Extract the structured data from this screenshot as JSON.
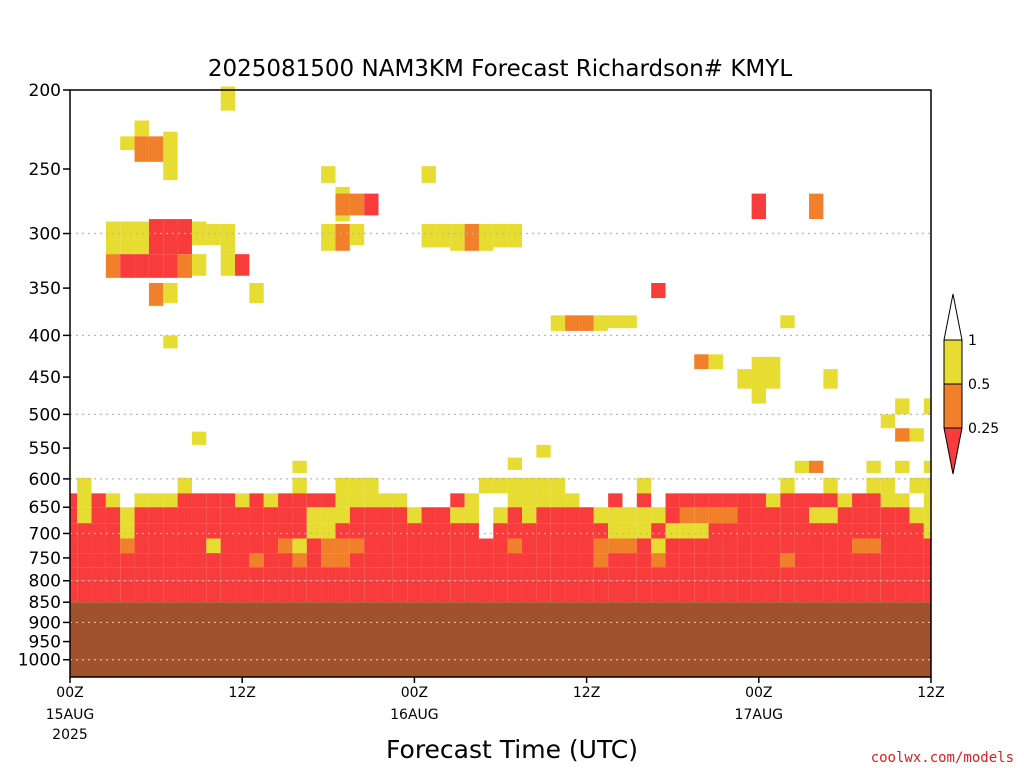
{
  "chart_data": {
    "type": "heatmap",
    "title": "2025081500 NAM3KM Forecast Richardson# KMYL",
    "xlabel": "Forecast Time (UTC)",
    "ylabel": "",
    "x_unit": "forecast hour",
    "xlim": [
      0,
      60
    ],
    "ylim": [
      1050,
      200
    ],
    "yscale": "log",
    "y_ticks": [
      200,
      250,
      300,
      350,
      400,
      450,
      500,
      550,
      600,
      650,
      700,
      750,
      800,
      850,
      900,
      950,
      1000
    ],
    "y_tick_labels": [
      "200",
      "250",
      "300",
      "350",
      "400",
      "450",
      "500",
      "550",
      "600",
      "650",
      "700",
      "750",
      "800",
      "850",
      "900",
      "950",
      "1000"
    ],
    "y_gridlines": [
      300,
      400,
      500,
      600,
      700,
      800,
      900,
      1000
    ],
    "x_ticks": [
      {
        "hour": 0,
        "label": "00Z",
        "date": "15AUG",
        "year": "2025"
      },
      {
        "hour": 12,
        "label": "12Z",
        "date": "",
        "year": ""
      },
      {
        "hour": 24,
        "label": "00Z",
        "date": "16AUG",
        "year": ""
      },
      {
        "hour": 36,
        "label": "12Z",
        "date": "",
        "year": ""
      },
      {
        "hour": 48,
        "label": "00Z",
        "date": "17AUG",
        "year": ""
      },
      {
        "hour": 60,
        "label": "12Z",
        "date": "",
        "year": ""
      }
    ],
    "colorbar": {
      "levels": [
        "0.25",
        "0.5",
        "1"
      ],
      "classes": [
        {
          "name": "lt025",
          "range": "< 0.25",
          "color": "#f83c3c"
        },
        {
          "name": "025_05",
          "range": "0.25 - 0.5",
          "color": "#f0802a"
        },
        {
          "name": "05_1",
          "range": "0.5 - 1",
          "color": "#e6dc32"
        },
        {
          "name": "gt1",
          "range": "> 1",
          "color": "#ffffff"
        }
      ]
    },
    "below_ground": {
      "from_pressure": 850,
      "color": "#a0522d"
    },
    "cells": [
      {
        "hour": 11,
        "p_top": 198,
        "p_bot": 212,
        "class": "05_1"
      },
      {
        "hour": 4,
        "p_top": 228,
        "p_bot": 237,
        "class": "05_1"
      },
      {
        "hour": 5,
        "p_top": 218,
        "p_bot": 228,
        "class": "05_1"
      },
      {
        "hour": 5,
        "p_top": 228,
        "p_bot": 245,
        "class": "025_05"
      },
      {
        "hour": 6,
        "p_top": 228,
        "p_bot": 245,
        "class": "025_05"
      },
      {
        "hour": 7,
        "p_top": 225,
        "p_bot": 258,
        "class": "05_1"
      },
      {
        "hour": 18,
        "p_top": 248,
        "p_bot": 260,
        "class": "05_1"
      },
      {
        "hour": 25,
        "p_top": 248,
        "p_bot": 260,
        "class": "05_1"
      },
      {
        "hour": 19,
        "p_top": 263,
        "p_bot": 290,
        "class": "05_1"
      },
      {
        "hour": 19,
        "p_top": 268,
        "p_bot": 285,
        "class": "025_05"
      },
      {
        "hour": 20,
        "p_top": 268,
        "p_bot": 285,
        "class": "025_05"
      },
      {
        "hour": 21,
        "p_top": 268,
        "p_bot": 285,
        "class": "lt025"
      },
      {
        "hour": 48,
        "p_top": 268,
        "p_bot": 288,
        "class": "lt025"
      },
      {
        "hour": 52,
        "p_top": 268,
        "p_bot": 288,
        "class": "025_05"
      },
      {
        "hour": 3,
        "p_top": 290,
        "p_bot": 318,
        "class": "05_1"
      },
      {
        "hour": 4,
        "p_top": 290,
        "p_bot": 318,
        "class": "05_1"
      },
      {
        "hour": 5,
        "p_top": 290,
        "p_bot": 318,
        "class": "05_1"
      },
      {
        "hour": 6,
        "p_top": 288,
        "p_bot": 318,
        "class": "lt025"
      },
      {
        "hour": 7,
        "p_top": 288,
        "p_bot": 318,
        "class": "lt025"
      },
      {
        "hour": 8,
        "p_top": 288,
        "p_bot": 318,
        "class": "lt025"
      },
      {
        "hour": 9,
        "p_top": 290,
        "p_bot": 310,
        "class": "05_1"
      },
      {
        "hour": 10,
        "p_top": 292,
        "p_bot": 310,
        "class": "05_1"
      },
      {
        "hour": 11,
        "p_top": 292,
        "p_bot": 318,
        "class": "05_1"
      },
      {
        "hour": 18,
        "p_top": 292,
        "p_bot": 315,
        "class": "05_1"
      },
      {
        "hour": 19,
        "p_top": 292,
        "p_bot": 315,
        "class": "025_05"
      },
      {
        "hour": 20,
        "p_top": 292,
        "p_bot": 310,
        "class": "05_1"
      },
      {
        "hour": 25,
        "p_top": 292,
        "p_bot": 312,
        "class": "05_1"
      },
      {
        "hour": 26,
        "p_top": 292,
        "p_bot": 312,
        "class": "05_1"
      },
      {
        "hour": 27,
        "p_top": 292,
        "p_bot": 315,
        "class": "05_1"
      },
      {
        "hour": 28,
        "p_top": 292,
        "p_bot": 315,
        "class": "025_05"
      },
      {
        "hour": 29,
        "p_top": 292,
        "p_bot": 315,
        "class": "05_1"
      },
      {
        "hour": 30,
        "p_top": 292,
        "p_bot": 312,
        "class": "05_1"
      },
      {
        "hour": 31,
        "p_top": 292,
        "p_bot": 312,
        "class": "05_1"
      },
      {
        "hour": 3,
        "p_top": 318,
        "p_bot": 340,
        "class": "025_05"
      },
      {
        "hour": 4,
        "p_top": 318,
        "p_bot": 340,
        "class": "lt025"
      },
      {
        "hour": 5,
        "p_top": 318,
        "p_bot": 340,
        "class": "lt025"
      },
      {
        "hour": 6,
        "p_top": 318,
        "p_bot": 340,
        "class": "lt025"
      },
      {
        "hour": 7,
        "p_top": 318,
        "p_bot": 340,
        "class": "lt025"
      },
      {
        "hour": 8,
        "p_top": 318,
        "p_bot": 340,
        "class": "025_05"
      },
      {
        "hour": 9,
        "p_top": 318,
        "p_bot": 338,
        "class": "05_1"
      },
      {
        "hour": 11,
        "p_top": 318,
        "p_bot": 338,
        "class": "05_1"
      },
      {
        "hour": 12,
        "p_top": 318,
        "p_bot": 338,
        "class": "lt025"
      },
      {
        "hour": 13,
        "p_top": 345,
        "p_bot": 365,
        "class": "05_1"
      },
      {
        "hour": 6,
        "p_top": 345,
        "p_bot": 368,
        "class": "025_05"
      },
      {
        "hour": 7,
        "p_top": 345,
        "p_bot": 365,
        "class": "05_1"
      },
      {
        "hour": 7,
        "p_top": 400,
        "p_bot": 415,
        "class": "05_1"
      },
      {
        "hour": 34,
        "p_top": 378,
        "p_bot": 395,
        "class": "05_1"
      },
      {
        "hour": 35,
        "p_top": 378,
        "p_bot": 395,
        "class": "025_05"
      },
      {
        "hour": 36,
        "p_top": 378,
        "p_bot": 395,
        "class": "025_05"
      },
      {
        "hour": 37,
        "p_top": 378,
        "p_bot": 395,
        "class": "05_1"
      },
      {
        "hour": 38,
        "p_top": 378,
        "p_bot": 392,
        "class": "05_1"
      },
      {
        "hour": 39,
        "p_top": 378,
        "p_bot": 392,
        "class": "05_1"
      },
      {
        "hour": 41,
        "p_top": 345,
        "p_bot": 360,
        "class": "lt025"
      },
      {
        "hour": 50,
        "p_top": 378,
        "p_bot": 392,
        "class": "05_1"
      },
      {
        "hour": 44,
        "p_top": 422,
        "p_bot": 440,
        "class": "025_05"
      },
      {
        "hour": 45,
        "p_top": 422,
        "p_bot": 440,
        "class": "05_1"
      },
      {
        "hour": 47,
        "p_top": 440,
        "p_bot": 465,
        "class": "05_1"
      },
      {
        "hour": 48,
        "p_top": 425,
        "p_bot": 485,
        "class": "05_1"
      },
      {
        "hour": 49,
        "p_top": 425,
        "p_bot": 465,
        "class": "05_1"
      },
      {
        "hour": 53,
        "p_top": 440,
        "p_bot": 465,
        "class": "05_1"
      },
      {
        "hour": 58,
        "p_top": 478,
        "p_bot": 500,
        "class": "05_1"
      },
      {
        "hour": 57,
        "p_top": 500,
        "p_bot": 520,
        "class": "05_1"
      },
      {
        "hour": 60,
        "p_top": 478,
        "p_bot": 500,
        "class": "05_1"
      },
      {
        "hour": 58,
        "p_top": 520,
        "p_bot": 540,
        "class": "025_05"
      },
      {
        "hour": 59,
        "p_top": 520,
        "p_bot": 540,
        "class": "05_1"
      },
      {
        "hour": 9,
        "p_top": 525,
        "p_bot": 545,
        "class": "05_1"
      },
      {
        "hour": 33,
        "p_top": 545,
        "p_bot": 565,
        "class": "05_1"
      },
      {
        "hour": 31,
        "p_top": 565,
        "p_bot": 585,
        "class": "05_1"
      },
      {
        "hour": 16,
        "p_top": 570,
        "p_bot": 590,
        "class": "05_1"
      },
      {
        "hour": 51,
        "p_top": 570,
        "p_bot": 590,
        "class": "05_1"
      },
      {
        "hour": 52,
        "p_top": 570,
        "p_bot": 590,
        "class": "025_05"
      },
      {
        "hour": 56,
        "p_top": 570,
        "p_bot": 590,
        "class": "05_1"
      },
      {
        "hour": 58,
        "p_top": 570,
        "p_bot": 590,
        "class": "05_1"
      },
      {
        "hour": 60,
        "p_top": 570,
        "p_bot": 590,
        "class": "05_1"
      }
    ],
    "layers": [
      {
        "p_top": 598,
        "p_bot": 625,
        "cls": "05_1____5_______5__555_______555555_____5_________5__5__55_55_"
      },
      {
        "p_top": 625,
        "p_bot": 650,
        "cls": "L5L5_555LLLL5L5LLLL55555___L5__55555__L_L_LLLLLLL5LLLL5LL55_5"
      },
      {
        "p_top": 650,
        "p_bot": 680,
        "cls": "L5LL5LLLLLLLLLLLL555LLLL5LL55_5L5LLLL55555LOOOOLLLLL55LLLLL55"
      },
      {
        "p_top": 680,
        "p_bot": 710,
        "cls": "LLLL5LLLLLLLLLLLL55LLLLLLLLLL_LLLLLLLL555L555LLLLLLLLLLLLLLL5"
      },
      {
        "p_top": 710,
        "p_bot": 740,
        "cls": "LLLLOLLLLL5LLLLO5LOOOLLLLLLLLLLOLLLLLOOOL5LLLLLLLLLLLLLOOLLLL"
      },
      {
        "p_top": 740,
        "p_bot": 770,
        "cls": "LLLLLLLLLLLLLOLLOLOOLLLLLLLLLLLLLLLLLOLLLOLLLLLLLLOLLLLLLLLLL"
      },
      {
        "p_top": 770,
        "p_bot": 800,
        "cls": "LLLLLLLLLLLLLLLLLLLLLLLLLLLLLLLLLLLLLLLLLLLLLLLLLLLLLLLLLLLLL"
      },
      {
        "p_top": 800,
        "p_bot": 850,
        "cls": "LLLLLLLLLLLLLLLLLLLLLLLLLLLLLLLLLLLLLLLLLLLLLLLLLLLLLLLLLLLLL"
      }
    ]
  },
  "credit": "coolwx.com/models"
}
